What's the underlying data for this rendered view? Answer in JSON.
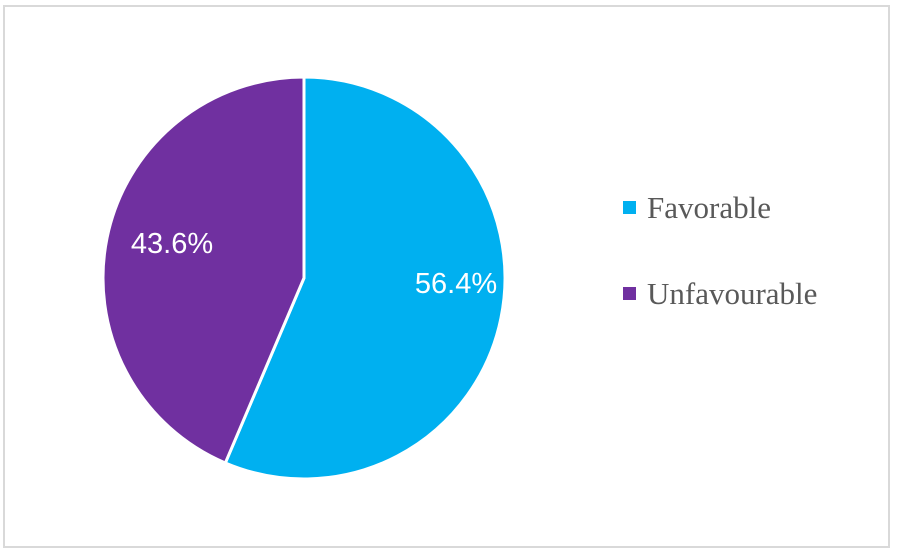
{
  "chart_data": {
    "type": "pie",
    "title": "",
    "slices": [
      {
        "label": "Favorable",
        "value": 56.4,
        "display": "56.4%",
        "color": "#00B0F0"
      },
      {
        "label": "Unfavourable",
        "value": 43.6,
        "display": "43.6%",
        "color": "#7030A0"
      }
    ],
    "start_angle": "top",
    "direction": "clockwise",
    "legend": "right"
  }
}
